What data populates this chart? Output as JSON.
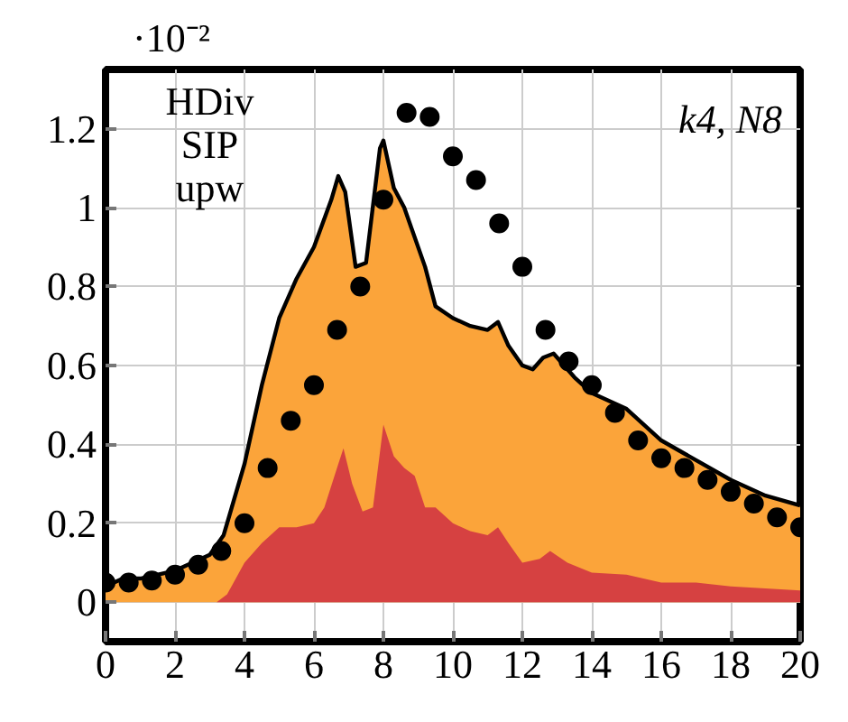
{
  "chart_data": {
    "type": "area",
    "annotations": [
      "·10⁻²",
      "HDiv",
      "SIP",
      "upw",
      "k4, N8"
    ],
    "xlim": [
      0,
      20
    ],
    "ylim": [
      -0.1,
      1.35
    ],
    "xticks": [
      0,
      2,
      4,
      6,
      8,
      10,
      12,
      14,
      16,
      18,
      20
    ],
    "yticks": [
      0,
      0.2,
      0.4,
      0.6,
      0.8,
      1,
      1.2
    ],
    "grid": true,
    "series": [
      {
        "color": "#fba43a",
        "x": [
          0,
          0.5,
          1,
          2,
          3,
          3.4,
          4,
          4.5,
          5,
          5.5,
          6,
          6.5,
          6.7,
          6.9,
          7.2,
          7.5,
          7.9,
          8.0,
          8.3,
          8.6,
          8.8,
          9.2,
          9.5,
          10,
          10.5,
          11,
          11.3,
          11.6,
          12,
          12.3,
          12.6,
          12.9,
          13.5,
          14,
          15,
          16,
          17,
          18,
          19,
          20
        ],
        "values": [
          0.04,
          0.06,
          0.06,
          0.08,
          0.12,
          0.17,
          0.35,
          0.55,
          0.72,
          0.82,
          0.9,
          1.02,
          1.08,
          1.04,
          0.85,
          0.86,
          1.15,
          1.17,
          1.05,
          1.0,
          0.95,
          0.85,
          0.75,
          0.72,
          0.7,
          0.69,
          0.71,
          0.65,
          0.6,
          0.59,
          0.62,
          0.63,
          0.57,
          0.53,
          0.49,
          0.41,
          0.36,
          0.31,
          0.27,
          0.245
        ]
      },
      {
        "color": "#d64141",
        "x": [
          0,
          3.2,
          3.5,
          4,
          4.5,
          5,
          5.5,
          6,
          6.3,
          6.7,
          6.85,
          7.1,
          7.4,
          7.7,
          8.0,
          8.3,
          8.6,
          8.9,
          9.2,
          9.5,
          10,
          10.5,
          11,
          11.3,
          11.6,
          12,
          12.5,
          12.8,
          13.3,
          14,
          15,
          16,
          17,
          18,
          19,
          20
        ],
        "values": [
          0,
          0,
          0.02,
          0.1,
          0.15,
          0.19,
          0.19,
          0.2,
          0.24,
          0.35,
          0.39,
          0.3,
          0.23,
          0.24,
          0.45,
          0.37,
          0.34,
          0.32,
          0.24,
          0.24,
          0.2,
          0.18,
          0.17,
          0.19,
          0.15,
          0.1,
          0.11,
          0.13,
          0.1,
          0.075,
          0.07,
          0.05,
          0.05,
          0.04,
          0.035,
          0.03
        ]
      },
      {
        "type": "scatter",
        "marker": "circle",
        "color": "#000000",
        "x": [
          0,
          0.667,
          1.333,
          2,
          2.667,
          3.333,
          4,
          4.667,
          5.333,
          6,
          6.667,
          7.333,
          8,
          8.667,
          9.333,
          10,
          10.667,
          11.333,
          12,
          12.667,
          13.333,
          14,
          14.667,
          15.333,
          16,
          16.667,
          17.333,
          18,
          18.667,
          19.333,
          20
        ],
        "values": [
          0.05,
          0.05,
          0.055,
          0.07,
          0.095,
          0.13,
          0.2,
          0.34,
          0.46,
          0.55,
          0.69,
          0.8,
          1.02,
          1.24,
          1.23,
          1.13,
          1.07,
          0.96,
          0.85,
          0.69,
          0.61,
          0.55,
          0.48,
          0.41,
          0.365,
          0.34,
          0.31,
          0.28,
          0.25,
          0.215,
          0.19
        ]
      }
    ]
  }
}
